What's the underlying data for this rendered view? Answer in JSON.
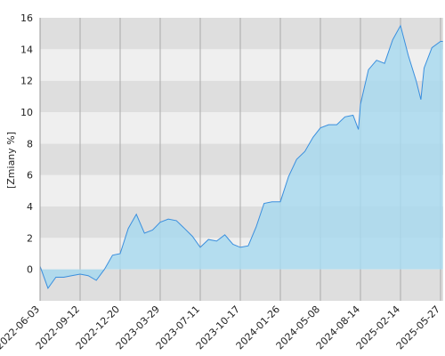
{
  "chart_data": {
    "type": "area",
    "y_label": "[Zmiany %]",
    "x": [
      "2022-06-03",
      "2022-06-23",
      "2022-07-13",
      "2022-08-02",
      "2022-08-22",
      "2022-09-12",
      "2022-10-02",
      "2022-10-22",
      "2022-11-11",
      "2022-12-01",
      "2022-12-20",
      "2023-01-09",
      "2023-01-29",
      "2023-02-18",
      "2023-03-10",
      "2023-03-29",
      "2023-04-19",
      "2023-05-10",
      "2023-05-31",
      "2023-06-21",
      "2023-07-11",
      "2023-07-31",
      "2023-08-20",
      "2023-09-09",
      "2023-09-29",
      "2023-10-17",
      "2023-11-06",
      "2023-11-26",
      "2023-12-16",
      "2024-01-05",
      "2024-01-26",
      "2024-02-16",
      "2024-03-08",
      "2024-03-29",
      "2024-04-19",
      "2024-05-08",
      "2024-05-28",
      "2024-06-17",
      "2024-07-07",
      "2024-07-27",
      "2024-08-09",
      "2024-08-14",
      "2024-09-20",
      "2024-10-27",
      "2024-12-03",
      "2025-01-09",
      "2025-02-14",
      "2025-03-06",
      "2025-03-26",
      "2025-04-07",
      "2025-04-15",
      "2025-05-05",
      "2025-05-27",
      "2025-06-02"
    ],
    "series": [
      {
        "color": "#3a8fde",
        "fill": "#a9d9ef",
        "values": [
          0.2,
          -1.2,
          -0.5,
          -0.5,
          -0.4,
          -0.3,
          -0.4,
          -0.7,
          0.0,
          0.9,
          1.0,
          2.6,
          3.5,
          2.3,
          2.5,
          3.0,
          3.2,
          3.1,
          2.6,
          2.1,
          1.4,
          1.9,
          1.8,
          2.2,
          1.6,
          1.4,
          1.5,
          2.7,
          4.2,
          4.3,
          4.3,
          5.9,
          7.0,
          7.5,
          8.4,
          9.0,
          9.2,
          9.2,
          9.7,
          9.8,
          8.9,
          10.5,
          12.7,
          13.3,
          13.1,
          14.6,
          15.5,
          13.6,
          12.0,
          10.8,
          12.8,
          14.1,
          14.5,
          14.5
        ]
      }
    ],
    "ylim": [
      -2,
      16
    ],
    "yticks": [
      0,
      2,
      4,
      6,
      8,
      10,
      12,
      14,
      16
    ],
    "xticks": [
      "2022-06-03",
      "2022-09-12",
      "2022-12-20",
      "2023-03-29",
      "2023-07-11",
      "2023-10-17",
      "2024-01-26",
      "2024-05-08",
      "2024-08-14",
      "2025-02-14",
      "2025-05-27"
    ],
    "grid": true
  }
}
